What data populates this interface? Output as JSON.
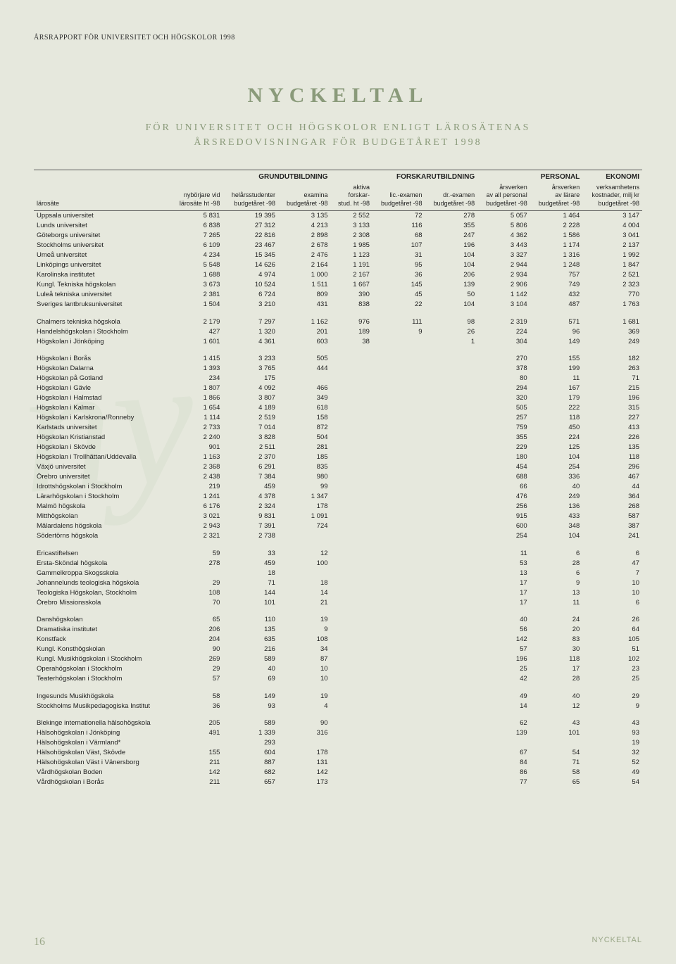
{
  "header_line": "ÅRSRAPPORT FÖR UNIVERSITET OCH HÖGSKOLOR 1998",
  "title": "NYCKELTAL",
  "subtitle_l1": "FÖR UNIVERSITET OCH HÖGSKOLOR ENLIGT LÄROSÄTENAS",
  "subtitle_l2": "ÅRSREDOVISNINGAR FÖR BUDGETÅRET 1998",
  "page_number": "16",
  "footer_section": "NYCKELTAL",
  "colors": {
    "background": "#e6e8dd",
    "accent": "#8a9a7a",
    "text": "#2a2a2a"
  },
  "section_heads": {
    "c1": "GRUNDUTBILDNING",
    "c2": "FORSKARUTBILDNING",
    "c3": "PERSONAL",
    "c4": "EKONOMI"
  },
  "sub_heads": {
    "label": "lärosäte",
    "a": "nybörjare vid\nlärosäte ht -98",
    "b": "helårsstudenter\nbudgetåret -98",
    "c": "examina\nbudgetåret -98",
    "d": "aktiva\nforskar-\nstud. ht -98",
    "e": "lic.-examen\nbudgetåret -98",
    "f": "dr.-examen\nbudgetåret -98",
    "g": "årsverken\nav all personal\nbudgetåret -98",
    "h": "årsverken\nav lärare\nbudgetåret -98",
    "i": "verksamhetens\nkostnader, milj kr\nbudgetåret -98"
  },
  "groups": [
    [
      {
        "n": "Uppsala universitet",
        "v": [
          "5 831",
          "19 395",
          "3 135",
          "2 552",
          "72",
          "278",
          "5 057",
          "1 464",
          "3 147"
        ]
      },
      {
        "n": "Lunds universitet",
        "v": [
          "6 838",
          "27 312",
          "4 213",
          "3 133",
          "116",
          "355",
          "5 806",
          "2 228",
          "4 004"
        ]
      },
      {
        "n": "Göteborgs universitet",
        "v": [
          "7 265",
          "22 816",
          "2 898",
          "2 308",
          "68",
          "247",
          "4 362",
          "1 586",
          "3 041"
        ]
      },
      {
        "n": "Stockholms universitet",
        "v": [
          "6 109",
          "23 467",
          "2 678",
          "1 985",
          "107",
          "196",
          "3 443",
          "1 174",
          "2 137"
        ]
      },
      {
        "n": "Umeå universitet",
        "v": [
          "4 234",
          "15 345",
          "2 476",
          "1 123",
          "31",
          "104",
          "3 327",
          "1 316",
          "1 992"
        ]
      },
      {
        "n": "Linköpings universitet",
        "v": [
          "5 548",
          "14 626",
          "2 164",
          "1 191",
          "95",
          "104",
          "2 944",
          "1 248",
          "1 847"
        ]
      },
      {
        "n": "Karolinska institutet",
        "v": [
          "1 688",
          "4 974",
          "1 000",
          "2 167",
          "36",
          "206",
          "2 934",
          "757",
          "2 521"
        ]
      },
      {
        "n": "Kungl. Tekniska högskolan",
        "v": [
          "3 673",
          "10 524",
          "1 511",
          "1 667",
          "145",
          "139",
          "2 906",
          "749",
          "2 323"
        ]
      },
      {
        "n": "Luleå tekniska universitet",
        "v": [
          "2 381",
          "6 724",
          "809",
          "390",
          "45",
          "50",
          "1 142",
          "432",
          "770"
        ]
      },
      {
        "n": "Sveriges lantbruksuniversitet",
        "v": [
          "1 504",
          "3 210",
          "431",
          "838",
          "22",
          "104",
          "3 104",
          "487",
          "1 763"
        ]
      }
    ],
    [
      {
        "n": "Chalmers tekniska högskola",
        "v": [
          "2 179",
          "7 297",
          "1 162",
          "976",
          "111",
          "98",
          "2 319",
          "571",
          "1 681"
        ]
      },
      {
        "n": "Handelshögskolan i Stockholm",
        "v": [
          "427",
          "1 320",
          "201",
          "189",
          "9",
          "26",
          "224",
          "96",
          "369"
        ]
      },
      {
        "n": "Högskolan i Jönköping",
        "v": [
          "1 601",
          "4 361",
          "603",
          "38",
          "",
          "1",
          "304",
          "149",
          "249"
        ]
      }
    ],
    [
      {
        "n": "Högskolan i Borås",
        "v": [
          "1 415",
          "3 233",
          "505",
          "",
          "",
          "",
          "270",
          "155",
          "182"
        ]
      },
      {
        "n": "Högskolan Dalarna",
        "v": [
          "1 393",
          "3 765",
          "444",
          "",
          "",
          "",
          "378",
          "199",
          "263"
        ]
      },
      {
        "n": "Högskolan på Gotland",
        "v": [
          "234",
          "175",
          "",
          "",
          "",
          "",
          "80",
          "11",
          "71"
        ]
      },
      {
        "n": "Högskolan i Gävle",
        "v": [
          "1 807",
          "4 092",
          "466",
          "",
          "",
          "",
          "294",
          "167",
          "215"
        ]
      },
      {
        "n": "Högskolan i Halmstad",
        "v": [
          "1 866",
          "3 807",
          "349",
          "",
          "",
          "",
          "320",
          "179",
          "196"
        ]
      },
      {
        "n": "Högskolan i Kalmar",
        "v": [
          "1 654",
          "4 189",
          "618",
          "",
          "",
          "",
          "505",
          "222",
          "315"
        ]
      },
      {
        "n": "Högskolan i Karlskrona/Ronneby",
        "v": [
          "1 114",
          "2 519",
          "158",
          "",
          "",
          "",
          "257",
          "118",
          "227"
        ]
      },
      {
        "n": "Karlstads universitet",
        "v": [
          "2 733",
          "7 014",
          "872",
          "",
          "",
          "",
          "759",
          "450",
          "413"
        ]
      },
      {
        "n": "Högskolan Kristianstad",
        "v": [
          "2 240",
          "3 828",
          "504",
          "",
          "",
          "",
          "355",
          "224",
          "226"
        ]
      },
      {
        "n": "Högskolan i Skövde",
        "v": [
          "901",
          "2 511",
          "281",
          "",
          "",
          "",
          "229",
          "125",
          "135"
        ]
      },
      {
        "n": "Högskolan i Trollhättan/Uddevalla",
        "v": [
          "1 163",
          "2 370",
          "185",
          "",
          "",
          "",
          "180",
          "104",
          "118"
        ]
      },
      {
        "n": "Växjö universitet",
        "v": [
          "2 368",
          "6 291",
          "835",
          "",
          "",
          "",
          "454",
          "254",
          "296"
        ]
      },
      {
        "n": "Örebro universitet",
        "v": [
          "2 438",
          "7 384",
          "980",
          "",
          "",
          "",
          "688",
          "336",
          "467"
        ]
      },
      {
        "n": "Idrottshögskolan i Stockholm",
        "v": [
          "219",
          "459",
          "99",
          "",
          "",
          "",
          "66",
          "40",
          "44"
        ]
      },
      {
        "n": "Lärarhögskolan i Stockholm",
        "v": [
          "1 241",
          "4 378",
          "1 347",
          "",
          "",
          "",
          "476",
          "249",
          "364"
        ]
      },
      {
        "n": "Malmö högskola",
        "v": [
          "6 176",
          "2 324",
          "178",
          "",
          "",
          "",
          "256",
          "136",
          "268"
        ]
      },
      {
        "n": "Mitthögskolan",
        "v": [
          "3 021",
          "9 831",
          "1 091",
          "",
          "",
          "",
          "915",
          "433",
          "587"
        ]
      },
      {
        "n": "Mälardalens högskola",
        "v": [
          "2 943",
          "7 391",
          "724",
          "",
          "",
          "",
          "600",
          "348",
          "387"
        ]
      },
      {
        "n": "Södertörns högskola",
        "v": [
          "2 321",
          "2 738",
          "",
          "",
          "",
          "",
          "254",
          "104",
          "241"
        ]
      }
    ],
    [
      {
        "n": "Ericastiftelsen",
        "v": [
          "59",
          "33",
          "12",
          "",
          "",
          "",
          "11",
          "6",
          "6"
        ]
      },
      {
        "n": "Ersta-Sköndal högskola",
        "v": [
          "278",
          "459",
          "100",
          "",
          "",
          "",
          "53",
          "28",
          "47"
        ]
      },
      {
        "n": "Gammelkroppa Skogsskola",
        "v": [
          "",
          "18",
          "",
          "",
          "",
          "",
          "13",
          "6",
          "7"
        ]
      },
      {
        "n": "Johannelunds teologiska högskola",
        "v": [
          "29",
          "71",
          "18",
          "",
          "",
          "",
          "17",
          "9",
          "10"
        ]
      },
      {
        "n": "Teologiska Högskolan, Stockholm",
        "v": [
          "108",
          "144",
          "14",
          "",
          "",
          "",
          "17",
          "13",
          "10"
        ]
      },
      {
        "n": "Örebro Missionsskola",
        "v": [
          "70",
          "101",
          "21",
          "",
          "",
          "",
          "17",
          "11",
          "6"
        ]
      }
    ],
    [
      {
        "n": "Danshögskolan",
        "v": [
          "65",
          "110",
          "19",
          "",
          "",
          "",
          "40",
          "24",
          "26"
        ]
      },
      {
        "n": "Dramatiska institutet",
        "v": [
          "206",
          "135",
          "9",
          "",
          "",
          "",
          "56",
          "20",
          "64"
        ]
      },
      {
        "n": "Konstfack",
        "v": [
          "204",
          "635",
          "108",
          "",
          "",
          "",
          "142",
          "83",
          "105"
        ]
      },
      {
        "n": "Kungl. Konsthögskolan",
        "v": [
          "90",
          "216",
          "34",
          "",
          "",
          "",
          "57",
          "30",
          "51"
        ]
      },
      {
        "n": "Kungl. Musikhögskolan i Stockholm",
        "v": [
          "269",
          "589",
          "87",
          "",
          "",
          "",
          "196",
          "118",
          "102"
        ]
      },
      {
        "n": "Operahögskolan i Stockholm",
        "v": [
          "29",
          "40",
          "10",
          "",
          "",
          "",
          "25",
          "17",
          "23"
        ]
      },
      {
        "n": "Teaterhögskolan i Stockholm",
        "v": [
          "57",
          "69",
          "10",
          "",
          "",
          "",
          "42",
          "28",
          "25"
        ]
      }
    ],
    [
      {
        "n": "Ingesunds Musikhögskola",
        "v": [
          "58",
          "149",
          "19",
          "",
          "",
          "",
          "49",
          "40",
          "29"
        ]
      },
      {
        "n": "Stockholms Musikpedagogiska Institut",
        "v": [
          "36",
          "93",
          "4",
          "",
          "",
          "",
          "14",
          "12",
          "9"
        ]
      }
    ],
    [
      {
        "n": "Blekinge internationella hälsohögskola",
        "v": [
          "205",
          "589",
          "90",
          "",
          "",
          "",
          "62",
          "43",
          "43"
        ]
      },
      {
        "n": "Hälsohögskolan i Jönköping",
        "v": [
          "491",
          "1 339",
          "316",
          "",
          "",
          "",
          "139",
          "101",
          "93"
        ]
      },
      {
        "n": "Hälsohögskolan i Värmland*",
        "v": [
          "",
          "293",
          "",
          "",
          "",
          "",
          "",
          "",
          "19"
        ]
      },
      {
        "n": "Hälsohögskolan Väst, Skövde",
        "v": [
          "155",
          "604",
          "178",
          "",
          "",
          "",
          "67",
          "54",
          "32"
        ]
      },
      {
        "n": "Hälsohögskolan Väst i Vänersborg",
        "v": [
          "211",
          "887",
          "131",
          "",
          "",
          "",
          "84",
          "71",
          "52"
        ]
      },
      {
        "n": "Vårdhögskolan Boden",
        "v": [
          "142",
          "682",
          "142",
          "",
          "",
          "",
          "86",
          "58",
          "49"
        ]
      },
      {
        "n": "Vårdhögskolan i Borås",
        "v": [
          "211",
          "657",
          "173",
          "",
          "",
          "",
          "77",
          "65",
          "54"
        ]
      }
    ]
  ]
}
